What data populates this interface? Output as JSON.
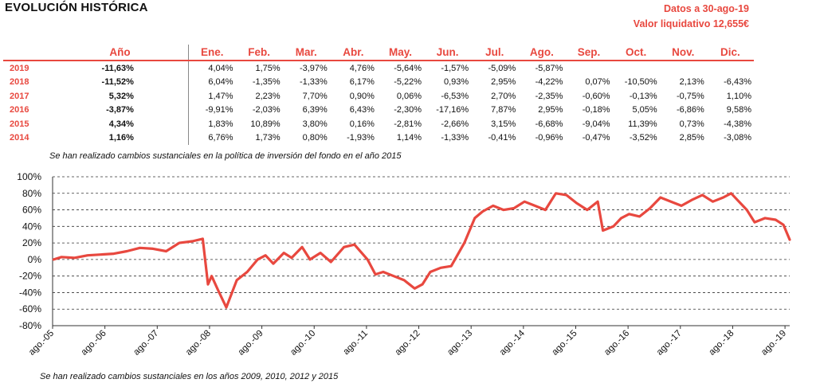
{
  "header": {
    "title": "EVOLUCIÓN HISTÓRICA",
    "date_text": "Datos a 30-ago-19",
    "nav_text": "Valor liquidativo 12,655€"
  },
  "table": {
    "headers": [
      "Año",
      "Ene.",
      "Feb.",
      "Mar.",
      "Abr.",
      "May.",
      "Jun.",
      "Jul.",
      "Ago.",
      "Sep.",
      "Oct.",
      "Nov.",
      "Dic."
    ],
    "rows": [
      {
        "year": "2019",
        "annual": "-11,63%",
        "months": [
          "4,04%",
          "1,75%",
          "-3,97%",
          "4,76%",
          "-5,64%",
          "-1,57%",
          "-5,09%",
          "-5,87%",
          "",
          "",
          "",
          ""
        ]
      },
      {
        "year": "2018",
        "annual": "-11,52%",
        "months": [
          "6,04%",
          "-1,35%",
          "-1,33%",
          "6,17%",
          "-5,22%",
          "0,93%",
          "2,95%",
          "-4,22%",
          "0,07%",
          "-10,50%",
          "2,13%",
          "-6,43%"
        ]
      },
      {
        "year": "2017",
        "annual": "5,32%",
        "months": [
          "1,47%",
          "2,23%",
          "7,70%",
          "0,90%",
          "0,06%",
          "-6,53%",
          "2,70%",
          "-2,35%",
          "-0,60%",
          "-0,13%",
          "-0,75%",
          "1,10%"
        ]
      },
      {
        "year": "2016",
        "annual": "-3,87%",
        "months": [
          "-9,91%",
          "-2,03%",
          "6,39%",
          "6,43%",
          "-2,30%",
          "-17,16%",
          "7,87%",
          "2,95%",
          "-0,18%",
          "5,05%",
          "-6,86%",
          "9,58%"
        ]
      },
      {
        "year": "2015",
        "annual": "4,34%",
        "months": [
          "1,83%",
          "10,89%",
          "3,80%",
          "0,16%",
          "-2,81%",
          "-2,66%",
          "3,15%",
          "-6,68%",
          "-9,04%",
          "11,39%",
          "0,73%",
          "-4,38%"
        ]
      },
      {
        "year": "2014",
        "annual": "1,16%",
        "months": [
          "6,76%",
          "1,73%",
          "0,80%",
          "-1,93%",
          "1,14%",
          "-1,33%",
          "-0,41%",
          "-0,96%",
          "-0,47%",
          "-3,52%",
          "2,85%",
          "-3,08%"
        ]
      }
    ]
  },
  "notes": {
    "policy_change": "Se han realizado cambios sustanciales en la política de inversión del fondo en el año 2015",
    "years_change": "Se han realizado cambios sustanciales en los años 2009, 2010, 2012 y 2015"
  },
  "colors": {
    "accent": "#e8483f",
    "line": "#e8483f"
  },
  "chart_data": {
    "type": "line",
    "title": "",
    "xlabel": "",
    "ylabel": "",
    "ylim": [
      -80,
      100
    ],
    "yticks": [
      "100%",
      "80%",
      "60%",
      "40%",
      "20%",
      "0%",
      "-20%",
      "-40%",
      "-60%",
      "-80%"
    ],
    "xticks": [
      "ago.-05",
      "ago.-06",
      "ago.-07",
      "ago.-08",
      "ago.-09",
      "ago.-10",
      "ago.-11",
      "ago.-12",
      "ago.-13",
      "ago.-14",
      "ago.-15",
      "ago.-16",
      "ago.-17",
      "ago.-18",
      "ago.-19"
    ],
    "grid": "horizontal dashed",
    "series": [
      {
        "x": [
          2005.6,
          2005.75,
          2006.0,
          2006.25,
          2006.5,
          2006.75,
          2007.0,
          2007.25,
          2007.5,
          2007.75,
          2008.0,
          2008.25,
          2008.45,
          2008.55,
          2008.62,
          2008.75,
          2008.9,
          2009.1,
          2009.3,
          2009.5,
          2009.65,
          2009.8,
          2010.0,
          2010.15,
          2010.35,
          2010.5,
          2010.7,
          2010.9,
          2011.15,
          2011.35,
          2011.6,
          2011.75,
          2011.9,
          2012.1,
          2012.3,
          2012.5,
          2012.65,
          2012.8,
          2013.0,
          2013.2,
          2013.45,
          2013.65,
          2013.8,
          2014.0,
          2014.2,
          2014.4,
          2014.6,
          2014.8,
          2015.0,
          2015.2,
          2015.4,
          2015.6,
          2015.8,
          2016.0,
          2016.1,
          2016.3,
          2016.45,
          2016.6,
          2016.8,
          2017.0,
          2017.2,
          2017.4,
          2017.6,
          2017.8,
          2018.0,
          2018.2,
          2018.4,
          2018.55,
          2018.7,
          2018.85,
          2019.0,
          2019.2,
          2019.4,
          2019.55,
          2019.67
        ],
        "y": [
          0,
          3,
          2,
          5,
          6,
          7,
          10,
          14,
          13,
          10,
          20,
          22,
          25,
          -30,
          -20,
          -38,
          -58,
          -25,
          -15,
          0,
          5,
          -5,
          8,
          2,
          15,
          0,
          8,
          -3,
          15,
          18,
          0,
          -18,
          -15,
          -20,
          -25,
          -35,
          -30,
          -15,
          -10,
          -8,
          20,
          50,
          58,
          65,
          60,
          62,
          70,
          65,
          60,
          80,
          78,
          68,
          60,
          70,
          35,
          40,
          50,
          55,
          52,
          62,
          75,
          70,
          65,
          72,
          78,
          70,
          75,
          80,
          70,
          60,
          45,
          50,
          48,
          42,
          24
        ]
      }
    ]
  }
}
